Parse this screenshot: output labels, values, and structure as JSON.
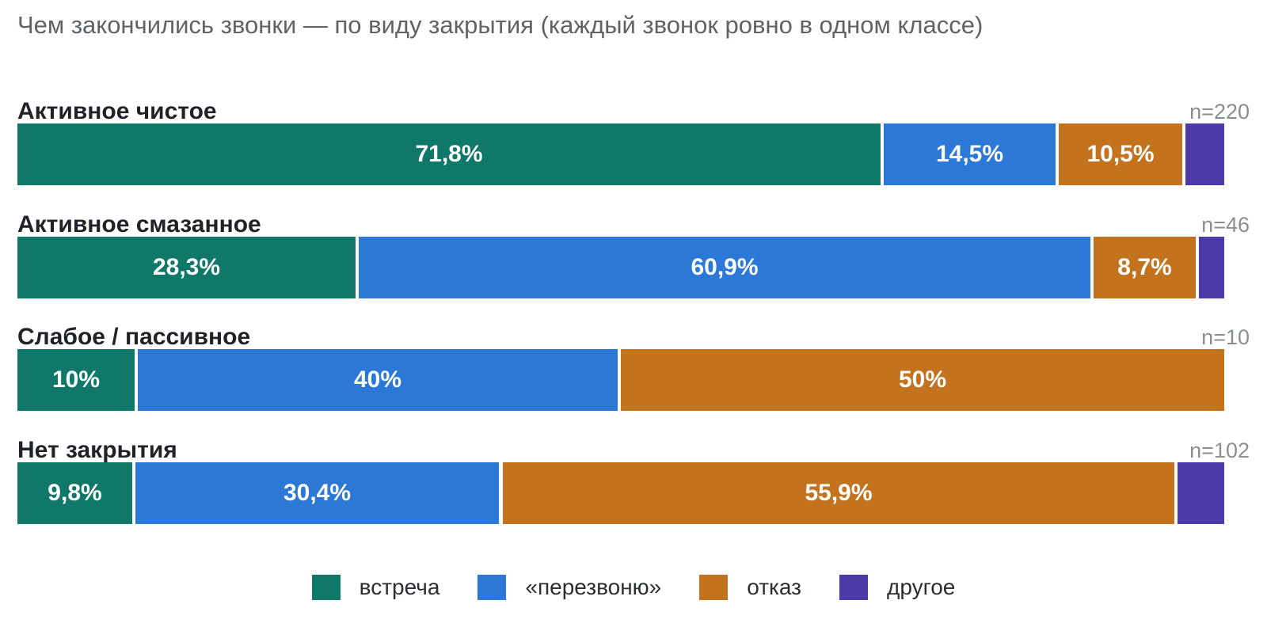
{
  "chart_data": {
    "type": "bar",
    "orientation": "horizontal",
    "stacked": true,
    "normalized": true,
    "title": "Чем закончились звонки — по виду закрытия (каждый звонок ровно в одном классе)",
    "categories": [
      "Активное чистое",
      "Активное смазанное",
      "Слабое / пассивное",
      "Нет закрытия"
    ],
    "n_labels": [
      "n=220",
      "n=46",
      "n=10",
      "n=102"
    ],
    "series": [
      {
        "name": "встреча",
        "color": "#0f7868",
        "values": [
          71.8,
          28.3,
          10,
          9.8
        ],
        "labels": [
          "71,8%",
          "28,3%",
          "10%",
          "9,8%"
        ]
      },
      {
        "name": "«перезвоню»",
        "color": "#2b78d6",
        "values": [
          14.5,
          60.9,
          40,
          30.4
        ],
        "labels": [
          "14,5%",
          "60,9%",
          "40%",
          "30,4%"
        ]
      },
      {
        "name": "отказ",
        "color": "#c3731e",
        "values": [
          10.5,
          8.7,
          50,
          55.9
        ],
        "labels": [
          "10,5%",
          "8,7%",
          "50%",
          "55,9%"
        ]
      },
      {
        "name": "другое",
        "color": "#4d3aa8",
        "values": [
          3.2,
          2.1,
          0,
          3.9
        ],
        "labels": [
          "",
          "",
          "",
          ""
        ]
      }
    ],
    "xlim": [
      0,
      100
    ],
    "grid": false,
    "legend_position": "bottom"
  }
}
